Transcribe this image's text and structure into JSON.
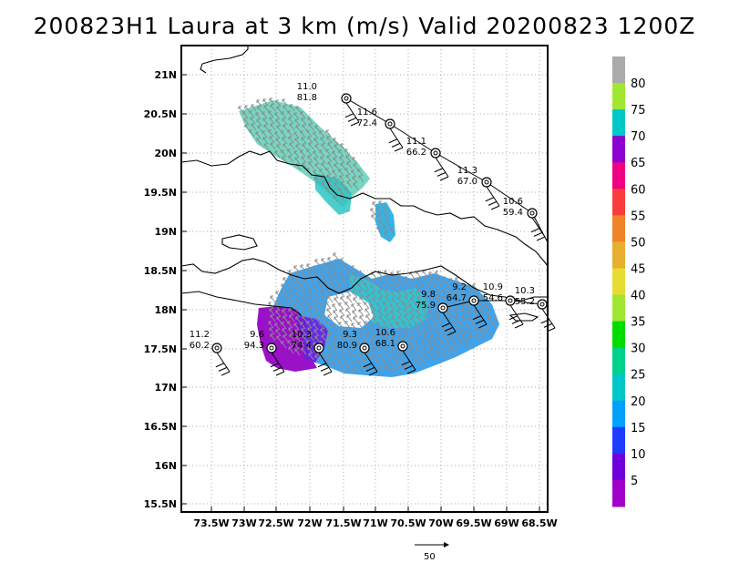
{
  "title": "200823H1 Laura at 3 km (m/s) Valid 20200823 1200Z",
  "axes": {
    "lat_ticks": [
      "21N",
      "20.5N",
      "20N",
      "19.5N",
      "19N",
      "18.5N",
      "18N",
      "17.5N",
      "17N",
      "16.5N",
      "16N",
      "15.5N"
    ],
    "lon_ticks": [
      "73.5W",
      "73W",
      "72.5W",
      "72W",
      "71.5W",
      "71W",
      "70.5W",
      "70W",
      "69.5W",
      "69W",
      "68.5W"
    ]
  },
  "colorbar": {
    "ticks": [
      "5",
      "10",
      "15",
      "20",
      "25",
      "30",
      "35",
      "40",
      "45",
      "50",
      "55",
      "60",
      "65",
      "70",
      "75",
      "80"
    ],
    "colors": [
      "#a000c8",
      "#6e00dc",
      "#1e3cff",
      "#00a0ff",
      "#00c8c8",
      "#00d28c",
      "#00dc00",
      "#a0e632",
      "#e6dc32",
      "#e6af2d",
      "#f08228",
      "#fa3c3c",
      "#f00082",
      "#8c00d2",
      "#00c8c8",
      "#a0e632",
      "#aaaaaa"
    ]
  },
  "observations": [
    {
      "top": "11.0",
      "bottom": "81.8"
    },
    {
      "top": "11.6",
      "bottom": "72.4"
    },
    {
      "top": "11.1",
      "bottom": "66.2"
    },
    {
      "top": "11.3",
      "bottom": "67.0"
    },
    {
      "top": "10.6",
      "bottom": "59.4"
    },
    {
      "top": "10.9",
      "bottom": "54.6"
    },
    {
      "top": "10.3",
      "bottom": "55.2"
    },
    {
      "top": "9.2",
      "bottom": "64.7"
    },
    {
      "top": "9.8",
      "bottom": "75.9"
    },
    {
      "top": "10.6",
      "bottom": "68.1"
    },
    {
      "top": "9.3",
      "bottom": "80.9"
    },
    {
      "top": "10.3",
      "bottom": "74.4"
    },
    {
      "top": "9.6",
      "bottom": "94.3"
    },
    {
      "top": "11.2",
      "bottom": "60.2"
    }
  ],
  "reference_vector": {
    "label": "50"
  }
}
